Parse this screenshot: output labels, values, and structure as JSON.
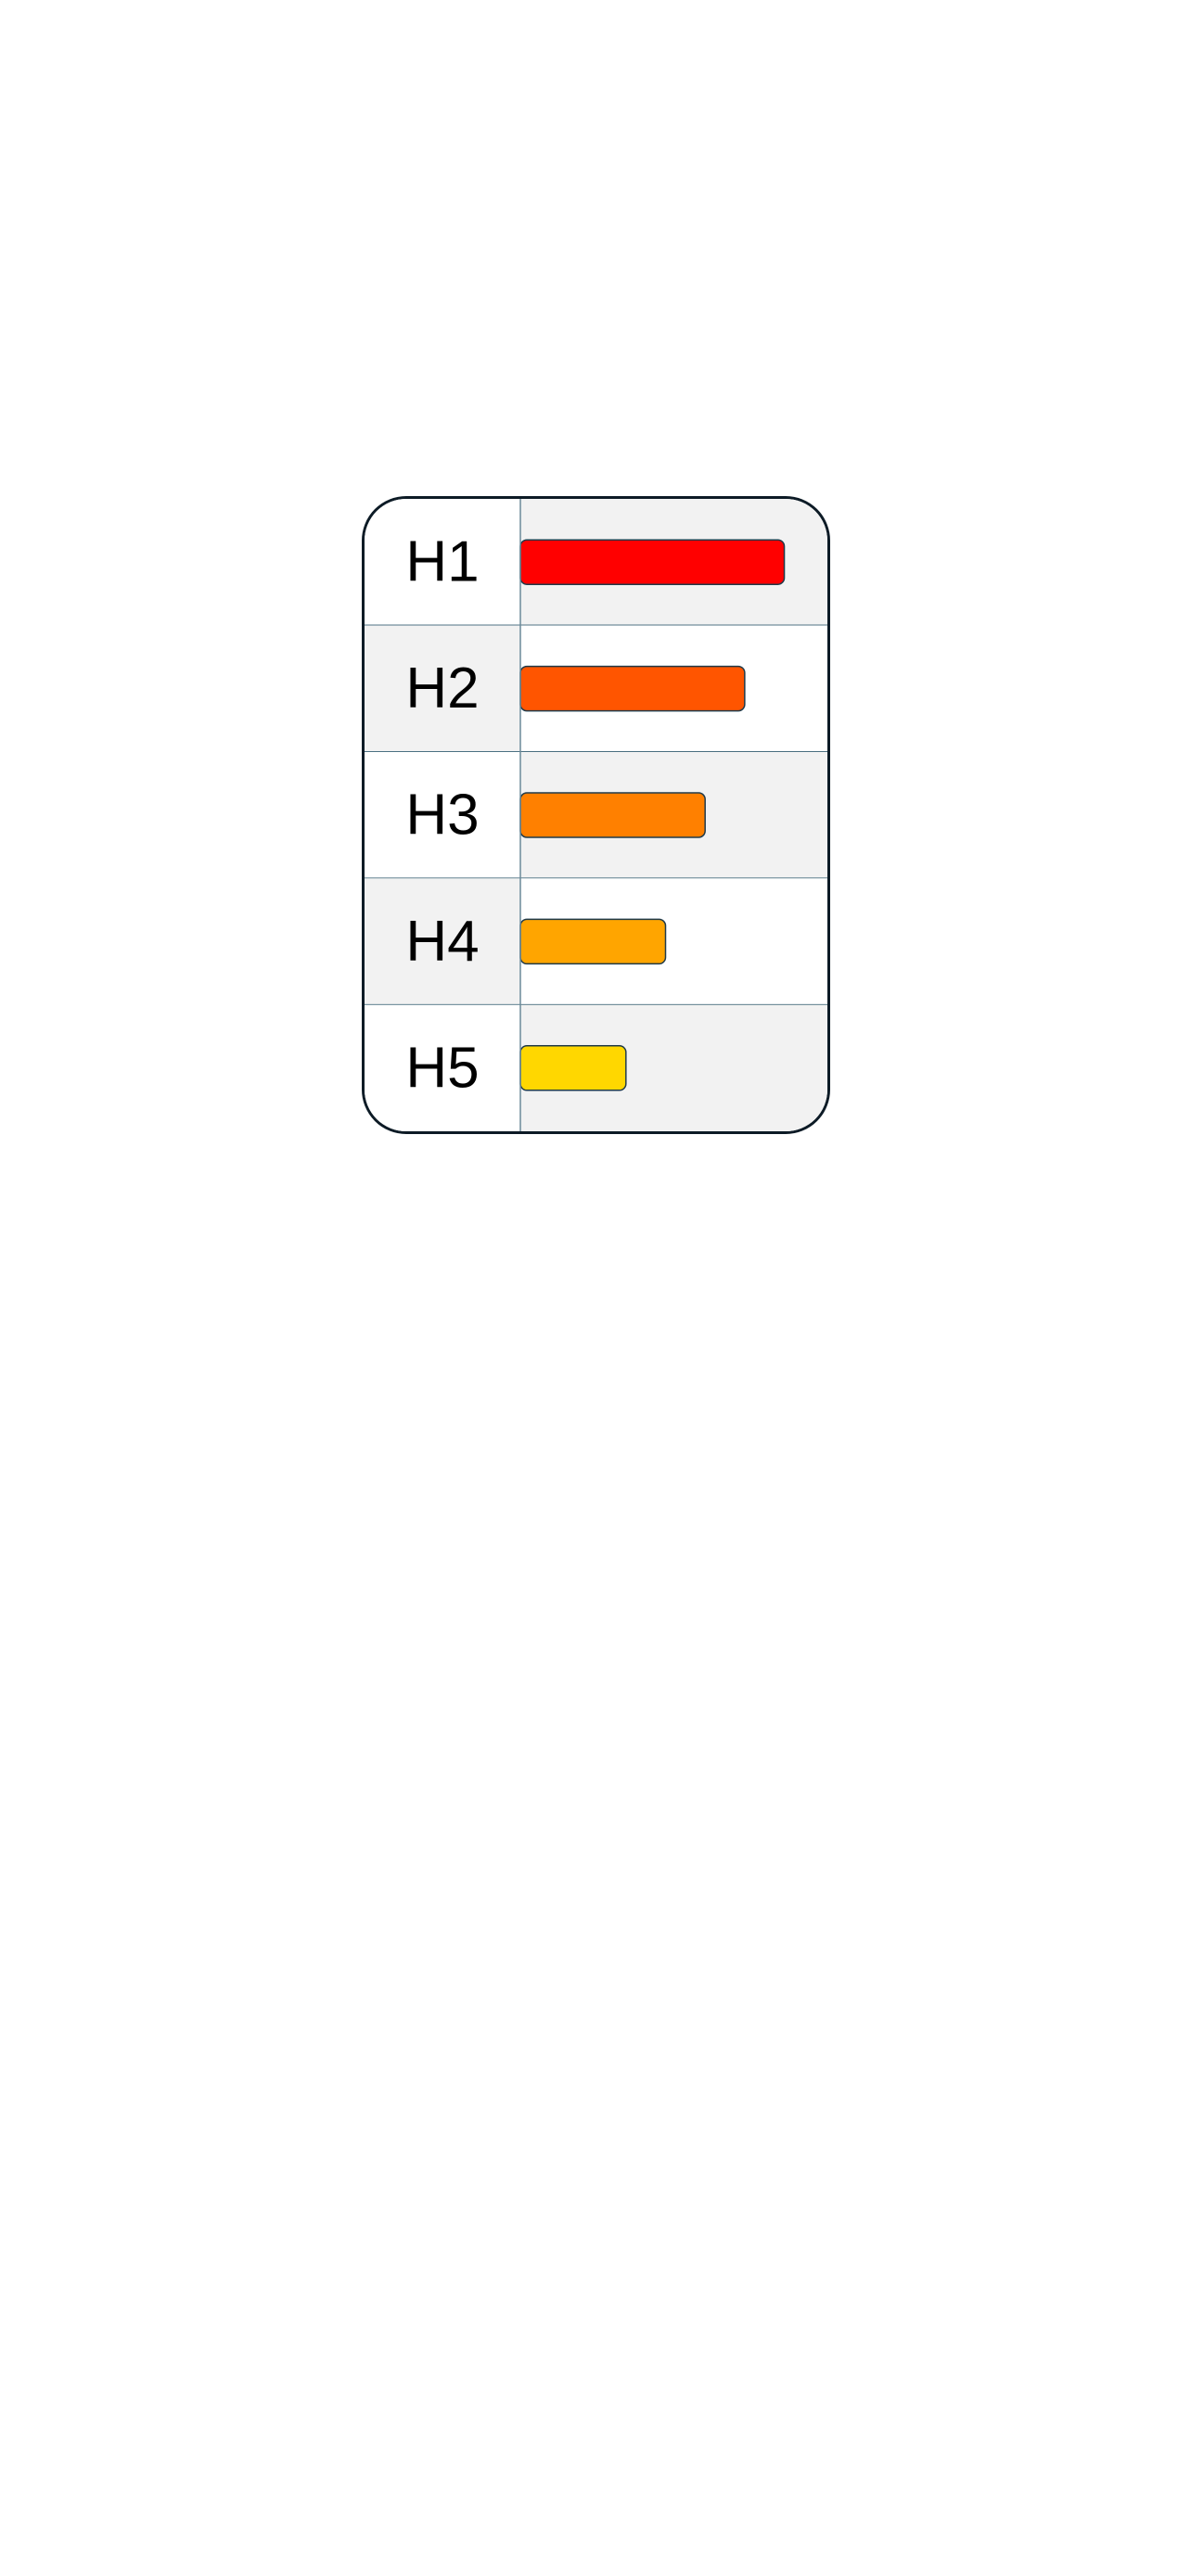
{
  "chart_data": {
    "type": "bar",
    "orientation": "horizontal",
    "title": "",
    "xlabel": "",
    "ylabel": "",
    "categories": [
      "H1",
      "H2",
      "H3",
      "H4",
      "H5"
    ],
    "values": [
      5,
      4.25,
      3.5,
      2.75,
      2
    ],
    "xlim": [
      0,
      5.5
    ],
    "grid": false,
    "legend": "none",
    "colors": [
      "#ff0000",
      "#ff5500",
      "#ff8000",
      "#ffa500",
      "#ffd700"
    ],
    "row_fills": [
      "#ffffff",
      "#f2f2f2"
    ],
    "divider_color": "#1f4e63",
    "bar_outline_color": "#1f3a4a"
  }
}
